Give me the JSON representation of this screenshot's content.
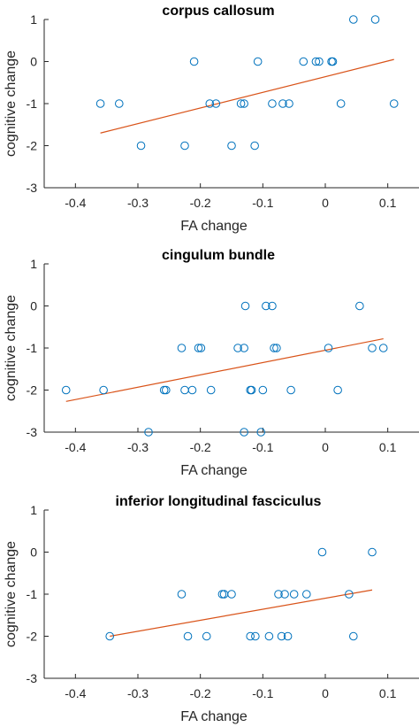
{
  "chart_data": [
    {
      "type": "scatter",
      "title": "corpus callosum",
      "xlabel": "FA change",
      "ylabel": "cognitive change",
      "xlim": [
        -0.45,
        0.15
      ],
      "ylim": [
        -3,
        1
      ],
      "xticks": [
        -0.4,
        -0.3,
        -0.2,
        -0.1,
        0,
        0.1
      ],
      "xtick_labels": [
        "-0.4",
        "-0.3",
        "-0.2",
        "-0.1",
        "0",
        "0.1"
      ],
      "yticks": [
        -3,
        -2,
        -1,
        0,
        1
      ],
      "ytick_labels": [
        "-3",
        "-2",
        "-1",
        "0",
        "1"
      ],
      "grid": false,
      "marker_color": "#0072BD",
      "line_color": "#D95319",
      "points": [
        {
          "x": -0.36,
          "y": -1
        },
        {
          "x": -0.33,
          "y": -1
        },
        {
          "x": -0.295,
          "y": -2
        },
        {
          "x": -0.225,
          "y": -2
        },
        {
          "x": -0.21,
          "y": 0
        },
        {
          "x": -0.185,
          "y": -1
        },
        {
          "x": -0.175,
          "y": -1
        },
        {
          "x": -0.15,
          "y": -2
        },
        {
          "x": -0.135,
          "y": -1
        },
        {
          "x": -0.13,
          "y": -1
        },
        {
          "x": -0.113,
          "y": -2
        },
        {
          "x": -0.108,
          "y": 0
        },
        {
          "x": -0.085,
          "y": -1
        },
        {
          "x": -0.068,
          "y": -1
        },
        {
          "x": -0.058,
          "y": -1
        },
        {
          "x": -0.035,
          "y": 0
        },
        {
          "x": -0.015,
          "y": 0
        },
        {
          "x": -0.01,
          "y": 0
        },
        {
          "x": 0.01,
          "y": 0
        },
        {
          "x": 0.012,
          "y": 0
        },
        {
          "x": 0.025,
          "y": -1
        },
        {
          "x": 0.045,
          "y": 1
        },
        {
          "x": 0.08,
          "y": 1
        },
        {
          "x": 0.11,
          "y": -1
        }
      ],
      "fit_line": {
        "x": [
          -0.36,
          0.11
        ],
        "y": [
          -1.7,
          0.05
        ]
      }
    },
    {
      "type": "scatter",
      "title": "cingulum bundle",
      "xlabel": "FA change",
      "ylabel": "cognitive change",
      "xlim": [
        -0.45,
        0.15
      ],
      "ylim": [
        -3,
        1
      ],
      "xticks": [
        -0.4,
        -0.3,
        -0.2,
        -0.1,
        0,
        0.1
      ],
      "xtick_labels": [
        "-0.4",
        "-0.3",
        "-0.2",
        "-0.1",
        "0",
        "0.1"
      ],
      "yticks": [
        -3,
        -2,
        -1,
        0,
        1
      ],
      "ytick_labels": [
        "-3",
        "-2",
        "-1",
        "0",
        "1"
      ],
      "grid": false,
      "marker_color": "#0072BD",
      "line_color": "#D95319",
      "points": [
        {
          "x": -0.415,
          "y": -2
        },
        {
          "x": -0.355,
          "y": -2
        },
        {
          "x": -0.283,
          "y": -3
        },
        {
          "x": -0.258,
          "y": -2
        },
        {
          "x": -0.255,
          "y": -2
        },
        {
          "x": -0.23,
          "y": -1
        },
        {
          "x": -0.225,
          "y": -2
        },
        {
          "x": -0.213,
          "y": -2
        },
        {
          "x": -0.203,
          "y": -1
        },
        {
          "x": -0.199,
          "y": -1
        },
        {
          "x": -0.183,
          "y": -2
        },
        {
          "x": -0.14,
          "y": -1
        },
        {
          "x": -0.13,
          "y": -1
        },
        {
          "x": -0.128,
          "y": 0
        },
        {
          "x": -0.13,
          "y": -3
        },
        {
          "x": -0.12,
          "y": -2
        },
        {
          "x": -0.118,
          "y": -2
        },
        {
          "x": -0.103,
          "y": -3
        },
        {
          "x": -0.1,
          "y": -2
        },
        {
          "x": -0.095,
          "y": 0
        },
        {
          "x": -0.085,
          "y": 0
        },
        {
          "x": -0.082,
          "y": -1
        },
        {
          "x": -0.078,
          "y": -1
        },
        {
          "x": -0.055,
          "y": -2
        },
        {
          "x": 0.005,
          "y": -1
        },
        {
          "x": 0.02,
          "y": -2
        },
        {
          "x": 0.055,
          "y": 0
        },
        {
          "x": 0.075,
          "y": -1
        },
        {
          "x": 0.093,
          "y": -1
        }
      ],
      "fit_line": {
        "x": [
          -0.415,
          0.093
        ],
        "y": [
          -2.27,
          -0.78
        ]
      }
    },
    {
      "type": "scatter",
      "title": "inferior longitudinal fasciculus",
      "xlabel": "FA change",
      "ylabel": "cognitive change",
      "xlim": [
        -0.45,
        0.15
      ],
      "ylim": [
        -3,
        1
      ],
      "xticks": [
        -0.4,
        -0.3,
        -0.2,
        -0.1,
        0,
        0.1
      ],
      "xtick_labels": [
        "-0.4",
        "-0.3",
        "-0.2",
        "-0.1",
        "0",
        "0.1"
      ],
      "yticks": [
        -3,
        -2,
        -1,
        0,
        1
      ],
      "ytick_labels": [
        "-3",
        "-2",
        "-1",
        "0",
        "1"
      ],
      "grid": false,
      "marker_color": "#0072BD",
      "line_color": "#D95319",
      "points": [
        {
          "x": -0.345,
          "y": -2
        },
        {
          "x": -0.23,
          "y": -1
        },
        {
          "x": -0.22,
          "y": -2
        },
        {
          "x": -0.19,
          "y": -2
        },
        {
          "x": -0.165,
          "y": -1
        },
        {
          "x": -0.162,
          "y": -1
        },
        {
          "x": -0.15,
          "y": -1
        },
        {
          "x": -0.12,
          "y": -2
        },
        {
          "x": -0.112,
          "y": -2
        },
        {
          "x": -0.09,
          "y": -2
        },
        {
          "x": -0.075,
          "y": -1
        },
        {
          "x": -0.07,
          "y": -2
        },
        {
          "x": -0.065,
          "y": -1
        },
        {
          "x": -0.06,
          "y": -2
        },
        {
          "x": -0.05,
          "y": -1
        },
        {
          "x": -0.03,
          "y": -1
        },
        {
          "x": -0.005,
          "y": 0
        },
        {
          "x": 0.038,
          "y": -1
        },
        {
          "x": 0.045,
          "y": -2
        },
        {
          "x": 0.075,
          "y": 0
        }
      ],
      "fit_line": {
        "x": [
          -0.345,
          0.075
        ],
        "y": [
          -2.0,
          -0.9
        ]
      }
    }
  ]
}
